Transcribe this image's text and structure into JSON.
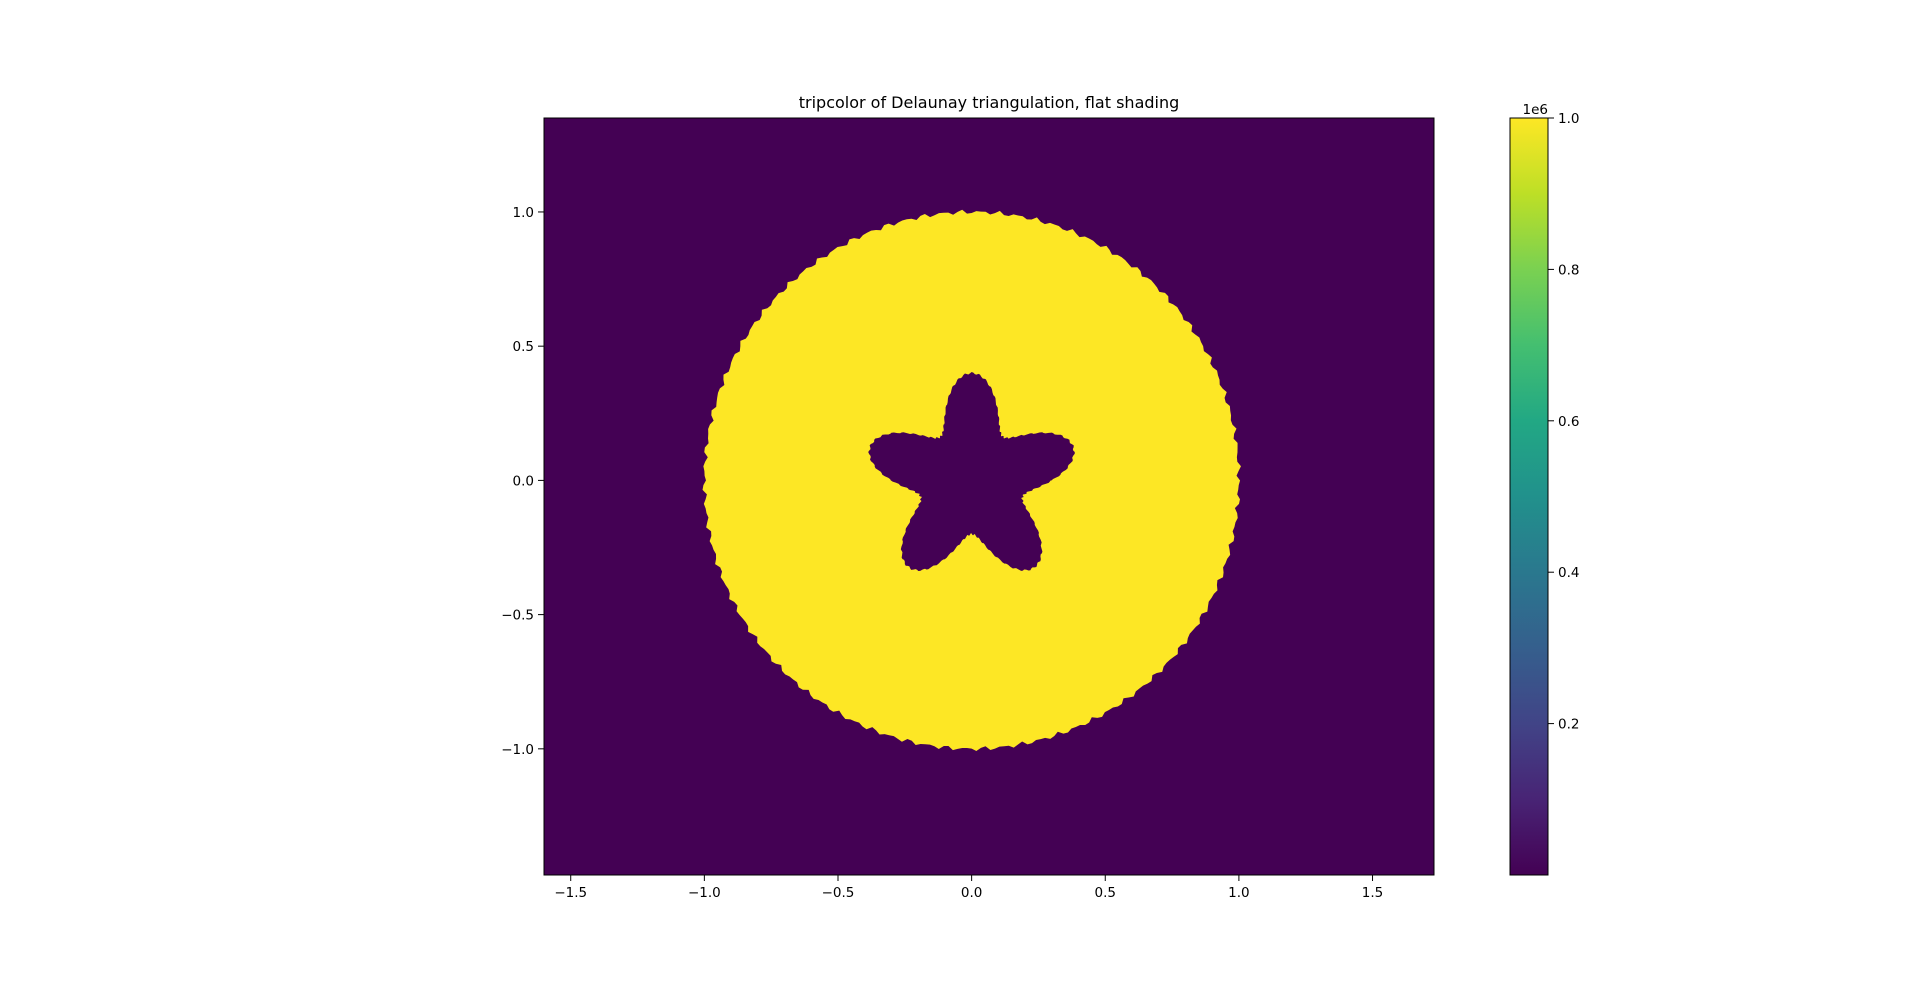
{
  "chart_data": {
    "type": "heatmap",
    "title": "tripcolor of Delaunay triangulation, flat shading",
    "xlabel": "",
    "ylabel": "",
    "xlim": [
      -1.6,
      1.73
    ],
    "ylim": [
      -1.47,
      1.35
    ],
    "xticks": [
      -1.5,
      -1.0,
      -0.5,
      0.0,
      0.5,
      1.0,
      1.5
    ],
    "xtick_labels": [
      "−1.5",
      "−1.0",
      "−0.5",
      "0.0",
      "0.5",
      "1.0",
      "1.5"
    ],
    "yticks": [
      -1.0,
      -0.5,
      0.0,
      0.5,
      1.0
    ],
    "ytick_labels": [
      "−1.0",
      "−0.5",
      "0.0",
      "0.5",
      "1.0"
    ],
    "grid": false,
    "shading": "flat",
    "colormap": "viridis",
    "regions": [
      {
        "shape": "background",
        "value": 0
      },
      {
        "shape": "disk",
        "center": [
          0.0,
          0.0
        ],
        "radius": 1.0,
        "value": 1000000
      },
      {
        "shape": "star",
        "center": [
          0.0,
          0.0
        ],
        "points": 5,
        "outer_radius": 0.4,
        "inner_radius": 0.2,
        "value": 0
      }
    ],
    "colors": {
      "low": "#440154",
      "high": "#fde725"
    },
    "colorbar": {
      "vmin": 0,
      "vmax": 1000000,
      "offset_label": "1e6",
      "ticks": [
        0.2,
        0.4,
        0.6,
        0.8,
        1.0
      ],
      "tick_labels": [
        "0.2",
        "0.4",
        "0.6",
        "0.8",
        "1.0"
      ]
    }
  }
}
